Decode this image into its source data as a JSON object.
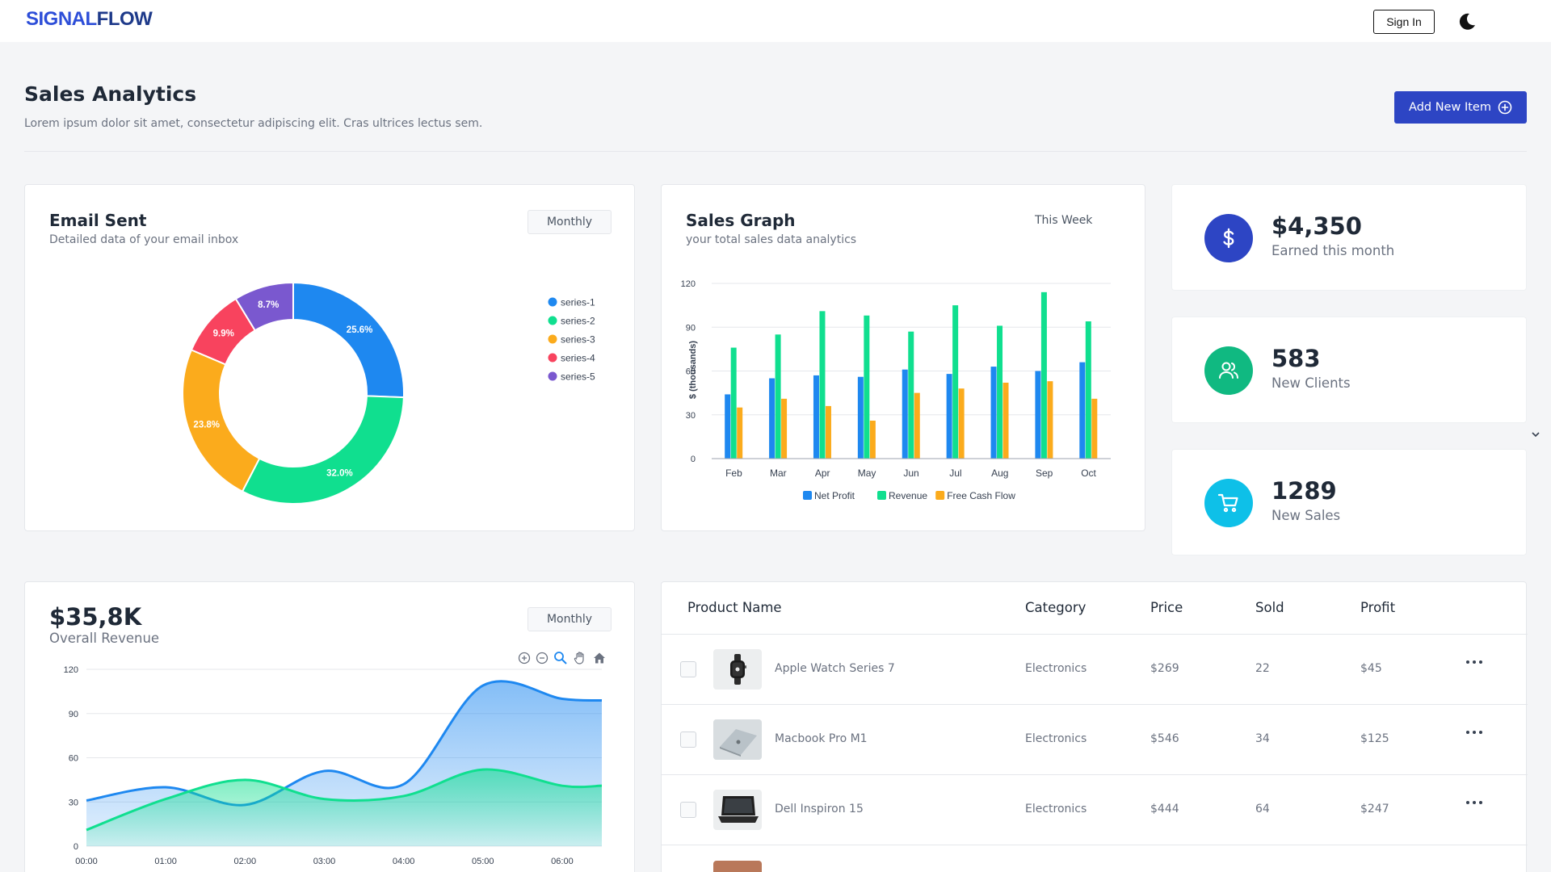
{
  "header": {
    "logo_part1": "SIGNAL",
    "logo_part2": "FLOW",
    "signin_label": "Sign In",
    "theme_icon": "moon-icon"
  },
  "page": {
    "title": "Sales Analytics",
    "subtitle": "Lorem ipsum dolor sit amet, consectetur adipiscing elit. Cras ultrices lectus sem.",
    "add_button_label": "Add New Item"
  },
  "email_card": {
    "title": "Email Sent",
    "subtitle": "Detailed data of your email inbox",
    "period": "Monthly"
  },
  "sales_card": {
    "title": "Sales Graph",
    "subtitle": "your total sales data analytics",
    "period": "This Week"
  },
  "stats": [
    {
      "value": "$4,350",
      "label": "Earned this month",
      "icon": "dollar-icon",
      "color": "#2d45c4"
    },
    {
      "value": "583",
      "label": "New Clients",
      "icon": "users-icon",
      "color": "#10b981"
    },
    {
      "value": "1289",
      "label": "New Sales",
      "icon": "cart-icon",
      "color": "#0ec0e8"
    }
  ],
  "revenue_card": {
    "value": "$35,8K",
    "label": "Overall Revenue",
    "period": "Monthly"
  },
  "table": {
    "headers": [
      "Product Name",
      "Category",
      "Price",
      "Sold",
      "Profit"
    ],
    "rows": [
      {
        "name": "Apple Watch Series 7",
        "category": "Electronics",
        "price": "$269",
        "sold": "22",
        "profit": "$45",
        "thumb": "watch"
      },
      {
        "name": "Macbook Pro M1",
        "category": "Electronics",
        "price": "$546",
        "sold": "34",
        "profit": "$125",
        "thumb": "macbook"
      },
      {
        "name": "Dell Inspiron 15",
        "category": "Electronics",
        "price": "$444",
        "sold": "64",
        "profit": "$247",
        "thumb": "dell"
      }
    ]
  },
  "colors": {
    "blue": "#1e88f0",
    "green": "#10df8f",
    "orange": "#fbab1c",
    "red": "#f8435e",
    "purple": "#7a58cf"
  },
  "chart_data": [
    {
      "type": "pie",
      "variant": "donut",
      "labels": [
        "series-1",
        "series-2",
        "series-3",
        "series-4",
        "series-5"
      ],
      "values": [
        25.6,
        32.0,
        23.8,
        9.9,
        8.7
      ],
      "data_labels": [
        "25.6%",
        "32.0%",
        "23.8%",
        "9.9%",
        "8.7%"
      ],
      "colors": [
        "#1e88f0",
        "#10df8f",
        "#fbab1c",
        "#f8435e",
        "#7a58cf"
      ],
      "legend": "right"
    },
    {
      "type": "bar",
      "categories": [
        "Feb",
        "Mar",
        "Apr",
        "May",
        "Jun",
        "Jul",
        "Aug",
        "Sep",
        "Oct"
      ],
      "series": [
        {
          "name": "Net Profit",
          "values": [
            44,
            55,
            57,
            56,
            61,
            58,
            63,
            60,
            66
          ],
          "color": "#1e88f0"
        },
        {
          "name": "Revenue",
          "values": [
            76,
            85,
            101,
            98,
            87,
            105,
            91,
            114,
            94
          ],
          "color": "#10df8f"
        },
        {
          "name": "Free Cash Flow",
          "values": [
            35,
            41,
            36,
            26,
            45,
            48,
            52,
            53,
            41
          ],
          "color": "#fbab1c"
        }
      ],
      "ylabel": "$ (thousands)",
      "yticks": [
        0,
        30,
        60,
        90,
        120
      ],
      "ylim": [
        0,
        120
      ],
      "grid": true,
      "legend": "bottom"
    },
    {
      "type": "area",
      "x": [
        "00:00",
        "01:00",
        "02:00",
        "03:00",
        "04:00",
        "05:00",
        "06:00"
      ],
      "series": [
        {
          "values": [
            31,
            40,
            28,
            51,
            42,
            109,
            100
          ],
          "color": "#1e88f0"
        },
        {
          "values": [
            11,
            32,
            45,
            32,
            34,
            52,
            41
          ],
          "color": "#10df8f"
        }
      ],
      "yticks": [
        0,
        30,
        60,
        90,
        120
      ],
      "ylim": [
        0,
        120
      ],
      "grid": true,
      "toolbar": [
        "zoom-in-icon",
        "zoom-out-icon",
        "magnifier-icon",
        "pan-hand-icon",
        "home-icon"
      ]
    }
  ]
}
